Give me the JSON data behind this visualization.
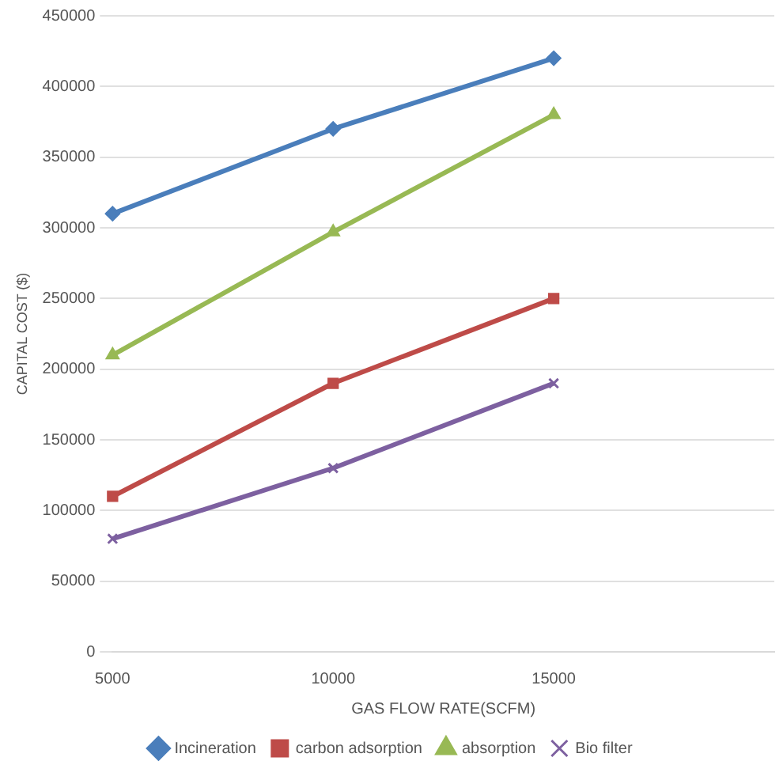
{
  "chart_data": {
    "type": "line",
    "xlabel": "GAS FLOW RATE(SCFM)",
    "ylabel": "CAPITAL COST ($)",
    "categories": [
      "5000",
      "10000",
      "15000",
      null
    ],
    "series": [
      {
        "name": "Incineration",
        "color": "#4a7ebb",
        "marker": "diamond",
        "values": [
          310000,
          370000,
          420000,
          null
        ]
      },
      {
        "name": "carbon adsorption",
        "color": "#be4b48",
        "marker": "square",
        "values": [
          110000,
          190000,
          250000,
          null
        ]
      },
      {
        "name": "absorption",
        "color": "#98b954",
        "marker": "triangle",
        "values": [
          210000,
          297000,
          380000,
          null
        ]
      },
      {
        "name": "Bio filter",
        "color": "#7d60a0",
        "marker": "cross",
        "values": [
          80000,
          130000,
          190000,
          null
        ]
      }
    ],
    "ylim": [
      0,
      450000
    ],
    "yticks": [
      0,
      50000,
      100000,
      150000,
      200000,
      250000,
      300000,
      350000,
      400000,
      450000
    ],
    "grid": "y",
    "legend": "bottom",
    "line_style": "solid"
  }
}
